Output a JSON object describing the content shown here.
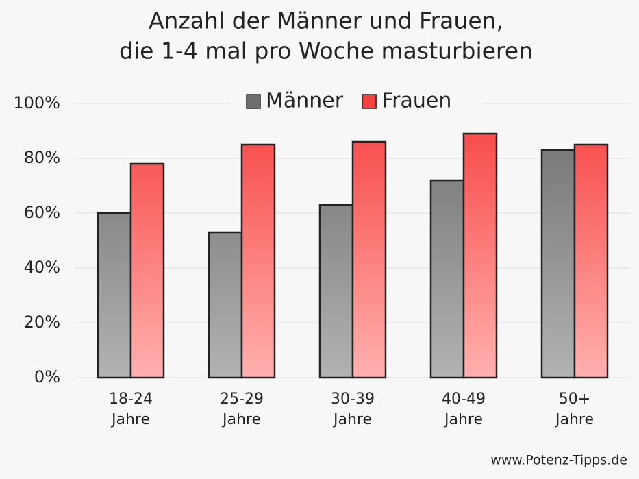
{
  "chart_data": {
    "type": "bar",
    "title": [
      "Anzahl der Männer und Frauen,",
      "die 1-4 mal pro Woche masturbieren"
    ],
    "categories": [
      [
        "18-24",
        "Jahre"
      ],
      [
        "25-29",
        "Jahre"
      ],
      [
        "30-39",
        "Jahre"
      ],
      [
        "40-49",
        "Jahre"
      ],
      [
        "50+",
        "Jahre"
      ]
    ],
    "series": [
      {
        "name": "Männer",
        "color": "#6e6e6e",
        "gradient_end": "#b2b2b2",
        "values": [
          60,
          53,
          63,
          72,
          83
        ]
      },
      {
        "name": "Frauen",
        "color": "#f6413f",
        "gradient_end": "#ffb0ae",
        "values": [
          78,
          85,
          86,
          89,
          85
        ]
      }
    ],
    "ylim": [
      0,
      100
    ],
    "yticks": [
      {
        "value": 0,
        "label": "0%"
      },
      {
        "value": 20,
        "label": "20%"
      },
      {
        "value": 40,
        "label": "40%"
      },
      {
        "value": 60,
        "label": "60%"
      },
      {
        "value": 80,
        "label": "80%"
      },
      {
        "value": 100,
        "label": "100%"
      }
    ],
    "grid": true,
    "legend": "top",
    "source": "www.Potenz-Tipps.de"
  }
}
